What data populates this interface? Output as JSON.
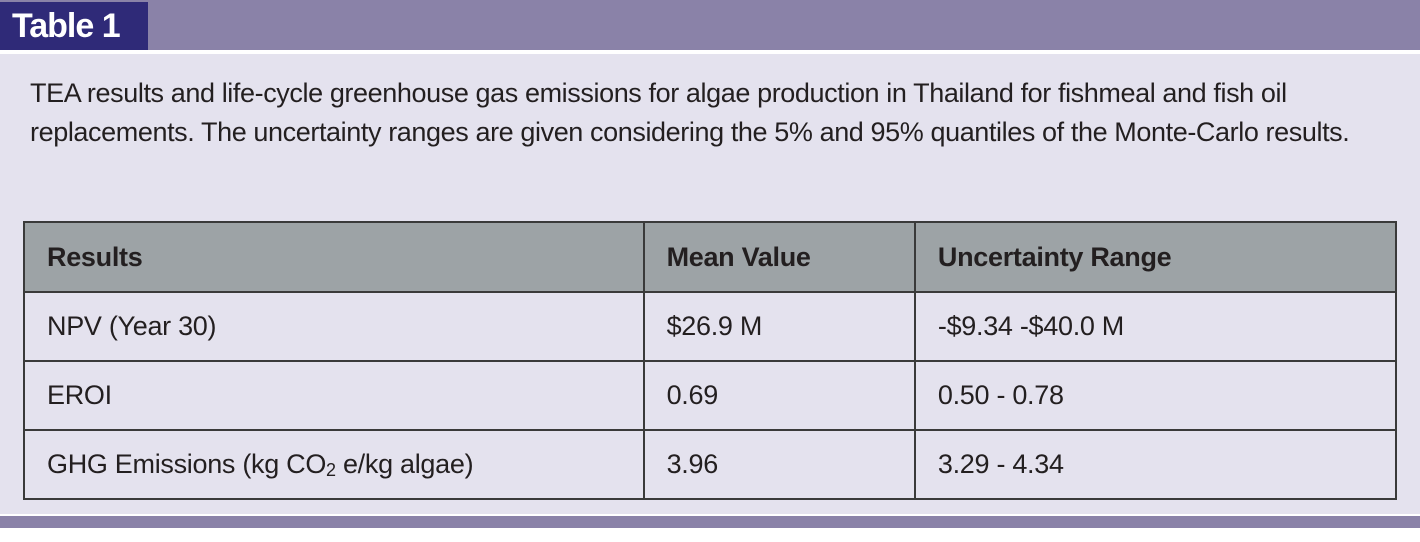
{
  "label": "Table 1",
  "caption": "TEA results and life-cycle greenhouse gas emissions for algae production in Thailand for fishmeal and fish oil replacements. The uncertainty ranges are given considering the 5% and 95% quantiles of the Monte-Carlo results.",
  "table": {
    "headers": [
      "Results",
      "Mean Value",
      "Uncertainty Range"
    ],
    "rows": [
      {
        "result": "NPV (Year 30)",
        "mean": "$26.9 M",
        "range": "-$9.34 -$40.0 M"
      },
      {
        "result": "EROI",
        "mean": "0.69",
        "range": "0.50 - 0.78"
      },
      {
        "result_prefix": "GHG Emissions (kg CO",
        "result_sub": "2",
        "result_suffix": " e/kg algae)",
        "mean": "3.96",
        "range": "3.29 - 4.34"
      }
    ]
  },
  "colors": {
    "banner": "#8a82a8",
    "label_tab": "#2f2a78",
    "panel": "#e4e2ee",
    "table_header": "#9da3a6"
  }
}
